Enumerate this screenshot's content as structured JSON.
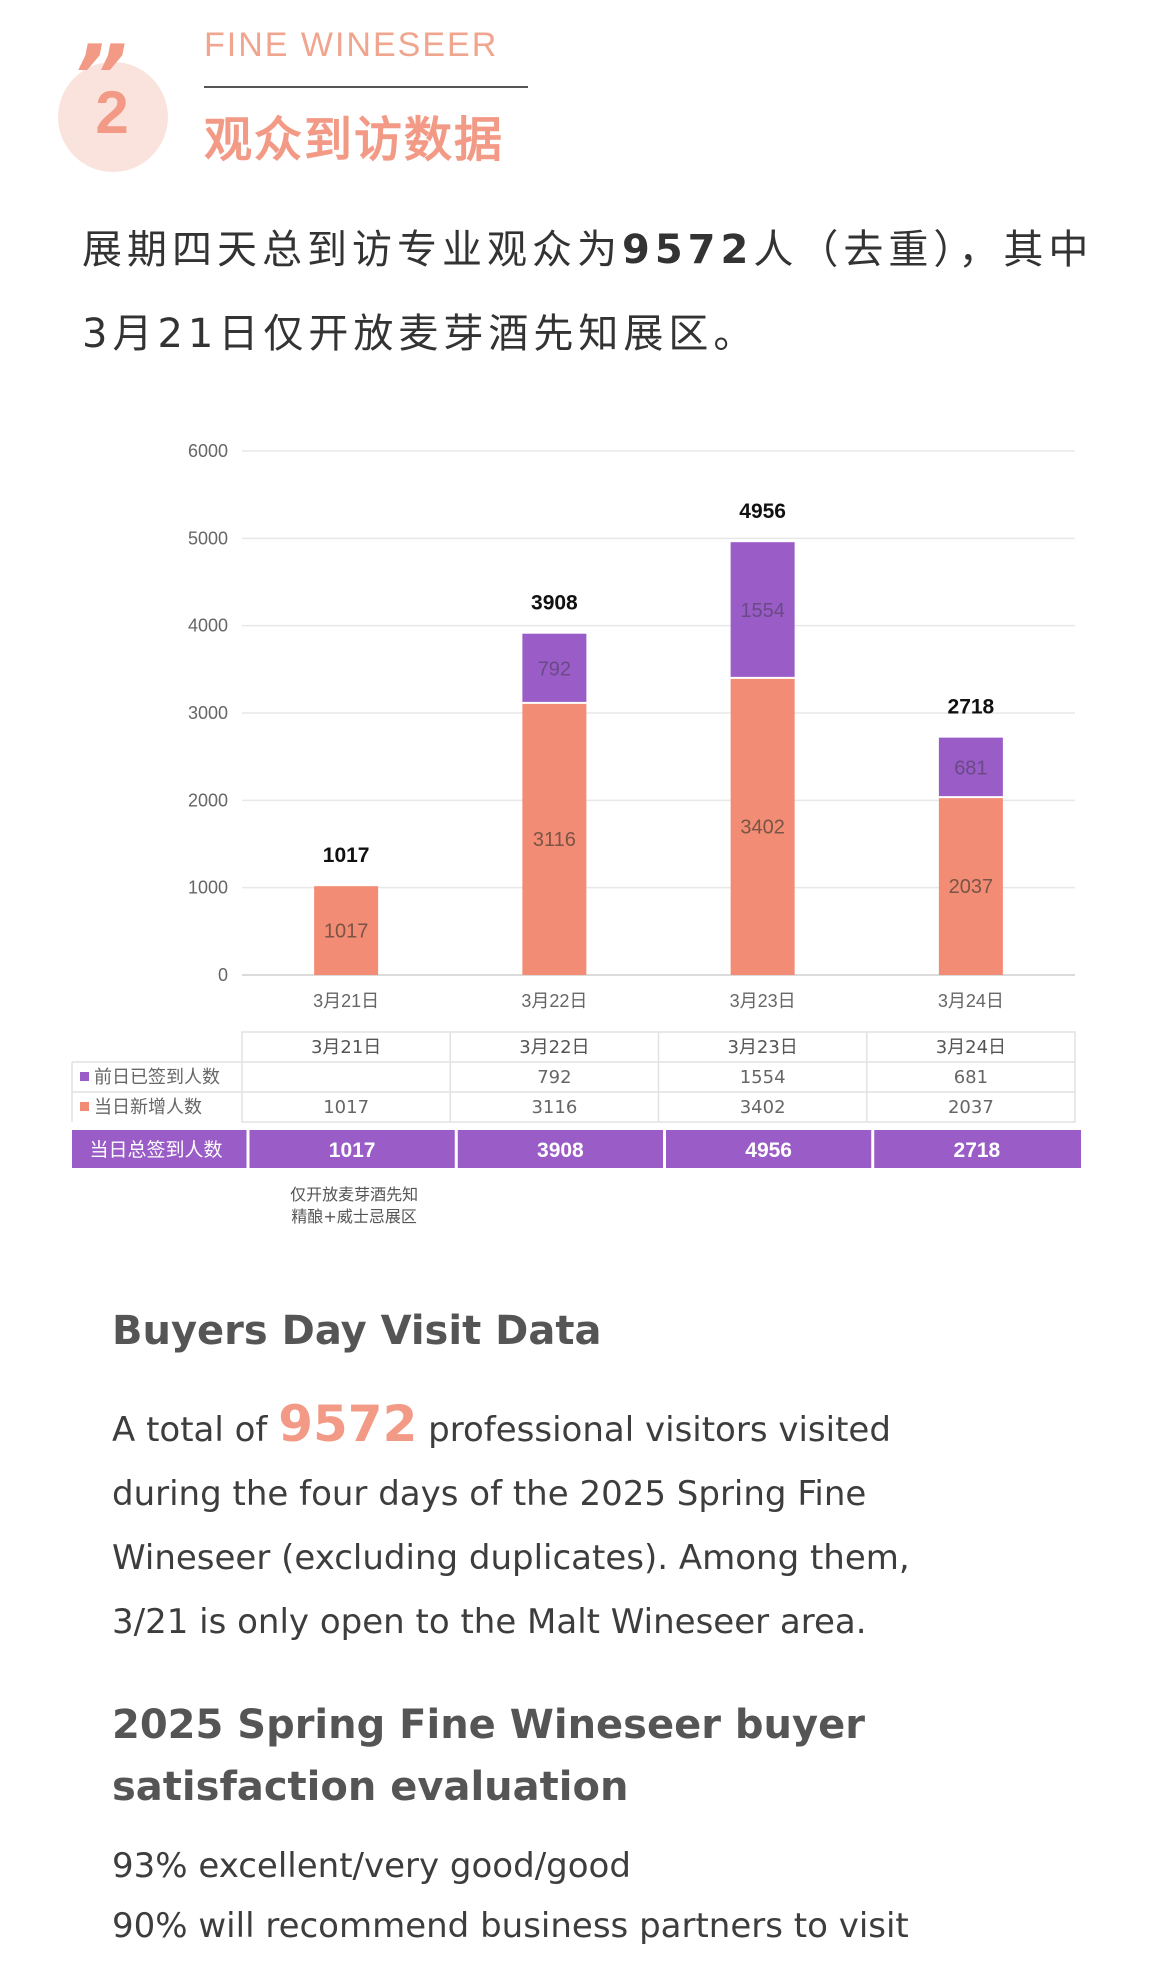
{
  "section": {
    "brand": "FINE WINESEER",
    "number": "2",
    "title": "观众到访数据"
  },
  "intro": {
    "part1": "展期四天总到访专业观众为",
    "number": "9572",
    "part2": "人（去重），其中3月21日仅开放麦芽酒先知展区。"
  },
  "colors": {
    "accent": "#f29a86",
    "new": "#f28c74",
    "prev": "#9a5cc6",
    "total_bar": "#9a5cc6"
  },
  "chart_data": {
    "type": "bar",
    "stacked": true,
    "categories": [
      "3月21日",
      "3月22日",
      "3月23日",
      "3月24日"
    ],
    "series": [
      {
        "name": "当日新增人数",
        "values": [
          1017,
          3116,
          3402,
          2037
        ]
      },
      {
        "name": "前日已签到人数",
        "values": [
          null,
          792,
          1554,
          681
        ]
      }
    ],
    "totals": [
      1017,
      3908,
      4956,
      2718
    ],
    "ylim": [
      0,
      6000
    ],
    "yticks": [
      0,
      1000,
      2000,
      3000,
      4000,
      5000,
      6000
    ],
    "grid": true,
    "table": {
      "header": [
        "3月21日",
        "3月22日",
        "3月23日",
        "3月24日"
      ],
      "rows": [
        {
          "label": "前日已签到人数",
          "values": [
            "",
            "792",
            "1554",
            "681"
          ]
        },
        {
          "label": "当日新增人数",
          "values": [
            "1017",
            "3116",
            "3402",
            "2037"
          ]
        }
      ],
      "total_label": "当日总签到人数",
      "total_values": [
        "1017",
        "3908",
        "4956",
        "2718"
      ]
    },
    "note": [
      "仅开放麦芽酒先知",
      "精酿+威士忌展区"
    ]
  },
  "english": {
    "heading": "Buyers Day Visit Data",
    "p_before": "A total of ",
    "p_number": "9572",
    "p_after": " professional visitors visited during the four days of the 2025 Spring Fine Wineseer (excluding duplicates). Among them, 3/21 is only open to the Malt Wineseer area.",
    "heading2": "2025 Spring Fine Wineseer buyer satisfaction evaluation",
    "stat1": "93% excellent/very good/good",
    "stat2": "90% will recommend business partners to visit"
  }
}
